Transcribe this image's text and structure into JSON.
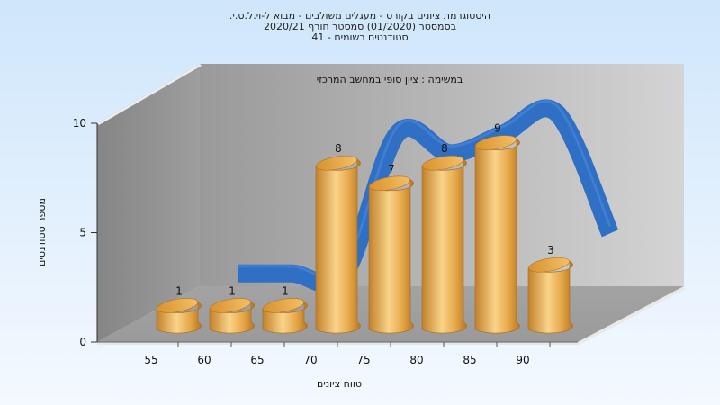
{
  "chart_data": {
    "type": "bar",
    "title_lines": [
      "היסטוגרמת ציונים בקורס - מעגלים משולבים - מבוא ל-וי.ל.ס.י.",
      "בסמסטר  (01/2020)  סמסטר חורף  2020/21",
      "סטודנטים רשומים - 41"
    ],
    "annotation": "במשימה : ציון סופי במחשב המרכזי",
    "xlabel": "טווח ציונים",
    "ylabel": "מספר סטודנטים",
    "categories": [
      "55",
      "60",
      "65",
      "70",
      "75",
      "80",
      "85",
      "90"
    ],
    "bars": [
      {
        "label": "1",
        "value": 1
      },
      {
        "label": "1",
        "value": 1
      },
      {
        "label": "1",
        "value": 1
      },
      {
        "label": "8",
        "value": 8
      },
      {
        "label": "7",
        "value": 7
      },
      {
        "label": "8",
        "value": 8
      },
      {
        "label": "9",
        "value": 9
      },
      {
        "label": "3",
        "value": 3
      }
    ],
    "ylim": [
      0,
      10
    ],
    "yticks": [
      "0",
      "5",
      "10"
    ],
    "bar_color": "#e3a13d",
    "curve_color": "#2f6fc4",
    "grid": false,
    "legend": "none"
  }
}
